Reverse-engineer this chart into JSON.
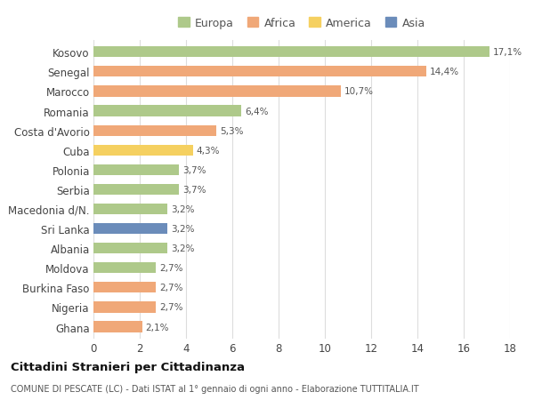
{
  "countries": [
    "Kosovo",
    "Senegal",
    "Marocco",
    "Romania",
    "Costa d'Avorio",
    "Cuba",
    "Polonia",
    "Serbia",
    "Macedonia d/N.",
    "Sri Lanka",
    "Albania",
    "Moldova",
    "Burkina Faso",
    "Nigeria",
    "Ghana"
  ],
  "values": [
    17.1,
    14.4,
    10.7,
    6.4,
    5.3,
    4.3,
    3.7,
    3.7,
    3.2,
    3.2,
    3.2,
    2.7,
    2.7,
    2.7,
    2.1
  ],
  "labels": [
    "17,1%",
    "14,4%",
    "10,7%",
    "6,4%",
    "5,3%",
    "4,3%",
    "3,7%",
    "3,7%",
    "3,2%",
    "3,2%",
    "3,2%",
    "2,7%",
    "2,7%",
    "2,7%",
    "2,1%"
  ],
  "colors": [
    "#aec98a",
    "#f0a878",
    "#f0a878",
    "#aec98a",
    "#f0a878",
    "#f5d060",
    "#aec98a",
    "#aec98a",
    "#aec98a",
    "#6b8cba",
    "#aec98a",
    "#aec98a",
    "#f0a878",
    "#f0a878",
    "#f0a878"
  ],
  "legend_labels": [
    "Europa",
    "Africa",
    "America",
    "Asia"
  ],
  "legend_colors": [
    "#aec98a",
    "#f0a878",
    "#f5d060",
    "#6b8cba"
  ],
  "title": "Cittadini Stranieri per Cittadinanza",
  "subtitle": "COMUNE DI PESCATE (LC) - Dati ISTAT al 1° gennaio di ogni anno - Elaborazione TUTTITALIA.IT",
  "xlim": [
    0,
    18
  ],
  "xticks": [
    0,
    2,
    4,
    6,
    8,
    10,
    12,
    14,
    16,
    18
  ],
  "bg_color": "#ffffff",
  "grid_color": "#dddddd",
  "bar_height": 0.55
}
